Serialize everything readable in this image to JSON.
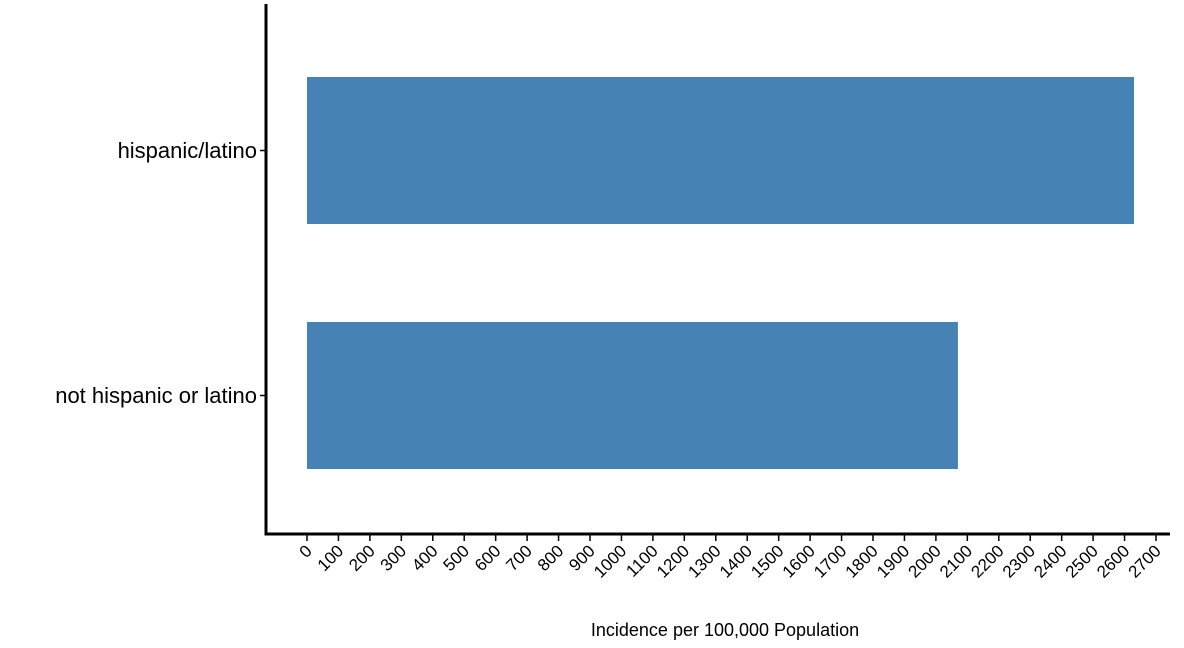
{
  "chart_data": {
    "type": "bar",
    "orientation": "horizontal",
    "categories": [
      "hispanic/latino",
      "not hispanic or latino"
    ],
    "values": [
      2630,
      2070
    ],
    "xlabel": "Incidence per 100,000 Population",
    "ylabel": "",
    "xlim": [
      0,
      2700
    ],
    "xticks": [
      0,
      100,
      200,
      300,
      400,
      500,
      600,
      700,
      800,
      900,
      1000,
      1100,
      1200,
      1300,
      1400,
      1500,
      1600,
      1700,
      1800,
      1900,
      2000,
      2100,
      2200,
      2300,
      2400,
      2500,
      2600,
      2700
    ],
    "bar_color": "#4682B4",
    "grid": false,
    "legend": "none"
  }
}
